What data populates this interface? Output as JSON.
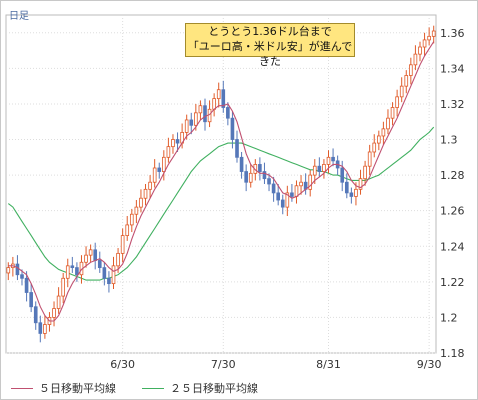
{
  "period_label": "日足",
  "callout": {
    "line1": "とうとう1.36ドル台まで",
    "line2": "「ユーロ高・米ドル安」が進んできた"
  },
  "legend": {
    "ma5": "５日移動平均線",
    "ma25": "２５日移動平均線"
  },
  "colors": {
    "candle_up_fill": "#ffffff",
    "candle_up_border": "#e05a28",
    "candle_down": "#5577b8",
    "ma5": "#c05070",
    "ma25": "#40b060",
    "grid": "#dddddd",
    "axis_text": "#333333"
  },
  "chart_data": {
    "type": "candlestick",
    "xlabel": "",
    "ylabel": "",
    "ylim": [
      1.18,
      1.37
    ],
    "y_ticks": [
      1.18,
      1.2,
      1.22,
      1.24,
      1.26,
      1.28,
      1.3,
      1.32,
      1.34,
      1.36
    ],
    "y_tick_labels": [
      "1.18",
      "1.2",
      "1.22",
      "1.24",
      "1.26",
      "1.28",
      "1.3",
      "1.32",
      "1.34",
      "1.36"
    ],
    "x_ticks": [
      {
        "label": "6/30",
        "index": 25
      },
      {
        "label": "7/30",
        "index": 47
      },
      {
        "label": "8/31",
        "index": 70
      },
      {
        "label": "9/30",
        "index": 92
      }
    ],
    "grid": true,
    "legend_position": "bottom-left",
    "close": [
      1.228,
      1.23,
      1.224,
      1.222,
      1.214,
      1.206,
      1.197,
      1.191,
      1.196,
      1.2,
      1.205,
      1.212,
      1.222,
      1.229,
      1.228,
      1.224,
      1.231,
      1.235,
      1.238,
      1.232,
      1.228,
      1.222,
      1.219,
      1.229,
      1.236,
      1.246,
      1.252,
      1.258,
      1.262,
      1.267,
      1.272,
      1.276,
      1.284,
      1.282,
      1.29,
      1.296,
      1.3,
      1.298,
      1.304,
      1.311,
      1.308,
      1.315,
      1.319,
      1.31,
      1.317,
      1.323,
      1.328,
      1.318,
      1.312,
      1.3,
      1.29,
      1.282,
      1.276,
      1.281,
      1.286,
      1.282,
      1.278,
      1.275,
      1.27,
      1.266,
      1.262,
      1.27,
      1.268,
      1.274,
      1.276,
      1.272,
      1.28,
      1.285,
      1.282,
      1.286,
      1.29,
      1.288,
      1.284,
      1.276,
      1.27,
      1.268,
      1.272,
      1.278,
      1.285,
      1.293,
      1.298,
      1.302,
      1.306,
      1.312,
      1.318,
      1.324,
      1.33,
      1.336,
      1.342,
      1.348,
      1.352,
      1.356,
      1.358,
      1.361
    ],
    "series": [
      {
        "name": "５日移動平均線",
        "values": [
          1.229,
          1.229,
          1.228,
          1.226,
          1.224,
          1.219,
          1.213,
          1.206,
          1.201,
          1.198,
          1.198,
          1.201,
          1.207,
          1.214,
          1.219,
          1.223,
          1.227,
          1.229,
          1.231,
          1.232,
          1.233,
          1.231,
          1.228,
          1.226,
          1.227,
          1.23,
          1.236,
          1.244,
          1.251,
          1.257,
          1.262,
          1.267,
          1.272,
          1.276,
          1.281,
          1.286,
          1.29,
          1.294,
          1.298,
          1.302,
          1.304,
          1.307,
          1.311,
          1.313,
          1.314,
          1.317,
          1.319,
          1.319,
          1.32,
          1.316,
          1.31,
          1.301,
          1.292,
          1.286,
          1.283,
          1.281,
          1.281,
          1.28,
          1.278,
          1.274,
          1.27,
          1.269,
          1.267,
          1.268,
          1.27,
          1.272,
          1.274,
          1.277,
          1.279,
          1.281,
          1.284,
          1.286,
          1.286,
          1.285,
          1.282,
          1.277,
          1.274,
          1.273,
          1.275,
          1.279,
          1.285,
          1.291,
          1.297,
          1.302,
          1.307,
          1.312,
          1.318,
          1.324,
          1.33,
          1.336,
          1.342,
          1.347,
          1.351,
          1.355
        ]
      },
      {
        "name": "２５日移動平均線",
        "values": [
          1.264,
          1.262,
          1.258,
          1.254,
          1.25,
          1.246,
          1.242,
          1.238,
          1.234,
          1.231,
          1.229,
          1.227,
          1.226,
          1.225,
          1.224,
          1.223,
          1.222,
          1.221,
          1.221,
          1.221,
          1.221,
          1.222,
          1.222,
          1.223,
          1.224,
          1.226,
          1.228,
          1.231,
          1.234,
          1.238,
          1.242,
          1.246,
          1.25,
          1.254,
          1.258,
          1.262,
          1.266,
          1.27,
          1.274,
          1.278,
          1.282,
          1.285,
          1.288,
          1.29,
          1.292,
          1.294,
          1.296,
          1.297,
          1.298,
          1.298,
          1.298,
          1.298,
          1.297,
          1.296,
          1.295,
          1.294,
          1.293,
          1.292,
          1.291,
          1.29,
          1.289,
          1.288,
          1.287,
          1.286,
          1.285,
          1.284,
          1.283,
          1.283,
          1.282,
          1.282,
          1.281,
          1.28,
          1.28,
          1.279,
          1.278,
          1.277,
          1.277,
          1.277,
          1.277,
          1.278,
          1.279,
          1.28,
          1.282,
          1.284,
          1.286,
          1.288,
          1.29,
          1.292,
          1.294,
          1.297,
          1.3,
          1.302,
          1.304,
          1.307
        ]
      }
    ]
  }
}
